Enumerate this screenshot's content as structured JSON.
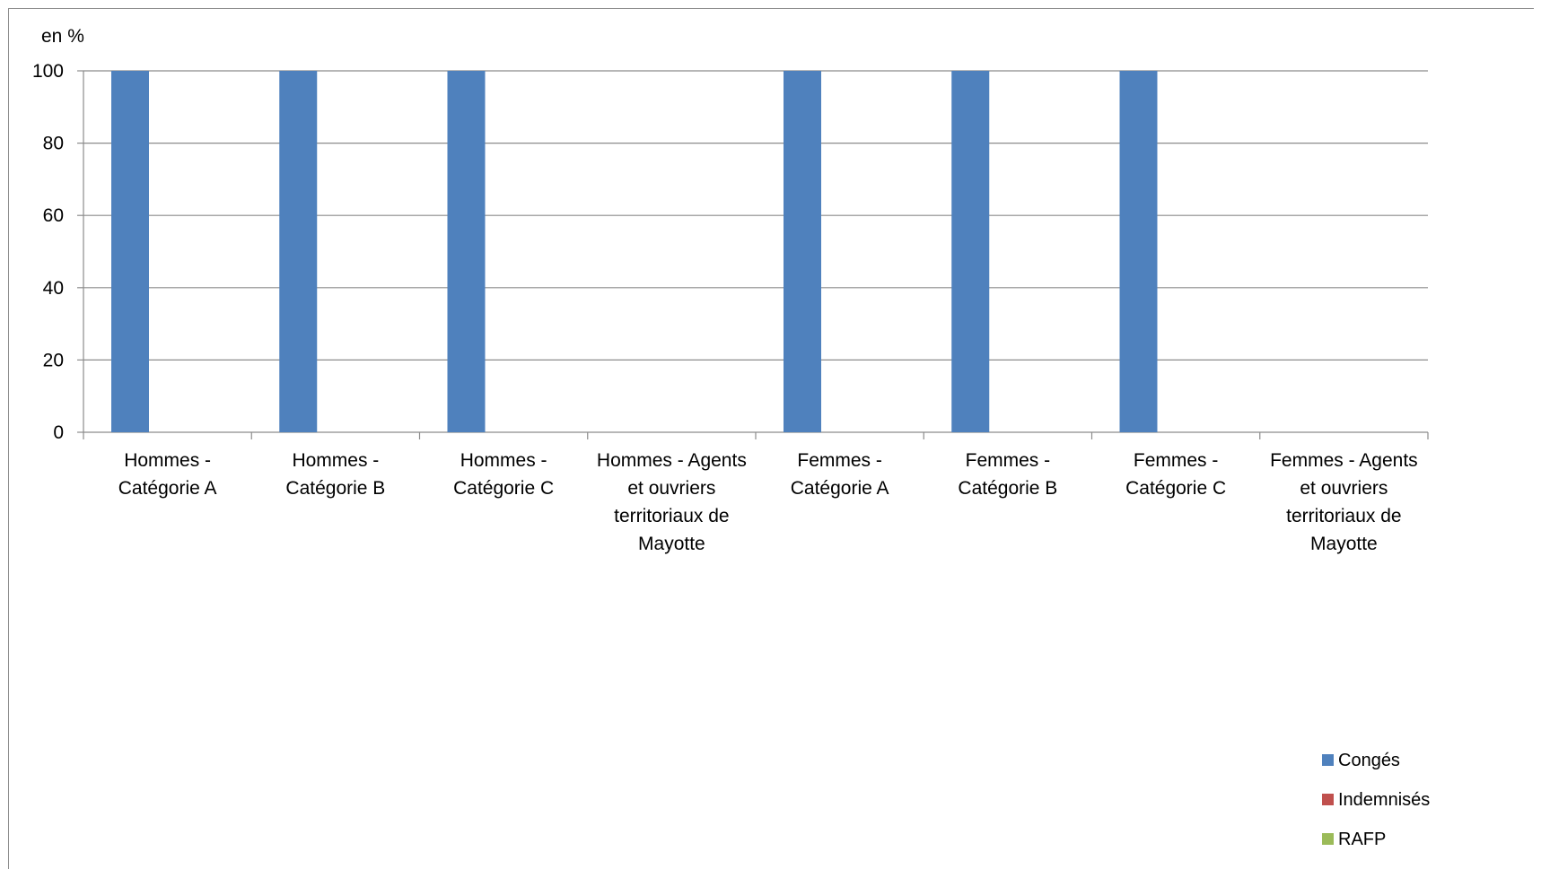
{
  "chart_data": {
    "type": "bar",
    "ylabel": "en %",
    "ylim": [
      0,
      100
    ],
    "yticks": [
      0,
      20,
      40,
      60,
      80,
      100
    ],
    "grid": true,
    "legend_position": "bottom-right",
    "categories": [
      [
        "Hommes -",
        "Catégorie A"
      ],
      [
        "Hommes -",
        "Catégorie B"
      ],
      [
        "Hommes -",
        "Catégorie C"
      ],
      [
        "Hommes - Agents",
        "et ouvriers",
        "territoriaux de",
        "Mayotte"
      ],
      [
        "Femmes -",
        "Catégorie A"
      ],
      [
        "Femmes -",
        "Catégorie B"
      ],
      [
        "Femmes -",
        "Catégorie C"
      ],
      [
        "Femmes - Agents",
        "et ouvriers",
        "territoriaux de",
        "Mayotte"
      ]
    ],
    "series": [
      {
        "name": "Congés",
        "color": "#4f81bd",
        "values": [
          100,
          100,
          100,
          0,
          100,
          100,
          100,
          0
        ]
      },
      {
        "name": "Indemnisés",
        "color": "#c0504d",
        "values": [
          0,
          0,
          0,
          0,
          0,
          0,
          0,
          0
        ]
      },
      {
        "name": "RAFP",
        "color": "#9bbb59",
        "values": [
          0,
          0,
          0,
          0,
          0,
          0,
          0,
          0
        ]
      }
    ]
  }
}
